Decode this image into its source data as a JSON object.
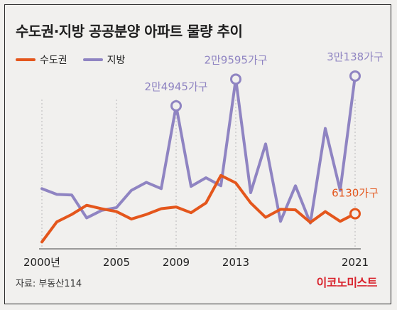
{
  "title": "수도권·지방 공공분양 아파트 물량 추이",
  "source": "자료: 부동산114",
  "brand": "이코노미스트",
  "colors": {
    "capital": "#e4561c",
    "regional": "#8f84c2"
  },
  "chart_data": {
    "type": "line",
    "title": "수도권·지방 공공분양 아파트 물량 추이",
    "x": [
      2000,
      2001,
      2002,
      2003,
      2004,
      2005,
      2006,
      2007,
      2008,
      2009,
      2010,
      2011,
      2012,
      2013,
      2014,
      2015,
      2016,
      2017,
      2018,
      2019,
      2020,
      2021
    ],
    "x_tick_labels": [
      {
        "x": 2000,
        "label": "2000년"
      },
      {
        "x": 2005,
        "label": "2005"
      },
      {
        "x": 2009,
        "label": "2009"
      },
      {
        "x": 2013,
        "label": "2013"
      },
      {
        "x": 2021,
        "label": "2021"
      }
    ],
    "ylim": [
      0,
      31000
    ],
    "grid": "vertical dotted at labeled years",
    "legend_position": "top-left",
    "series": [
      {
        "name": "수도권",
        "color": "#e4561c",
        "values": [
          1200,
          4700,
          6000,
          7600,
          7000,
          6500,
          5200,
          6000,
          7000,
          7300,
          6300,
          8000,
          12800,
          11500,
          8000,
          5500,
          6900,
          6800,
          4600,
          6500,
          4800,
          6130
        ]
      },
      {
        "name": "지방",
        "color": "#8f84c2",
        "values": [
          10500,
          9500,
          9400,
          5400,
          6700,
          7200,
          10200,
          11600,
          10500,
          24945,
          10900,
          12400,
          11000,
          29595,
          9800,
          18300,
          4800,
          11000,
          4500,
          21000,
          10200,
          30138
        ]
      }
    ],
    "annotations": [
      {
        "series": "지방",
        "x": 2009,
        "label": "2만4945가구"
      },
      {
        "series": "지방",
        "x": 2013,
        "label": "2만9595가구"
      },
      {
        "series": "지방",
        "x": 2021,
        "label": "3만138가구"
      },
      {
        "series": "수도권",
        "x": 2021,
        "label": "6130가구"
      }
    ]
  }
}
